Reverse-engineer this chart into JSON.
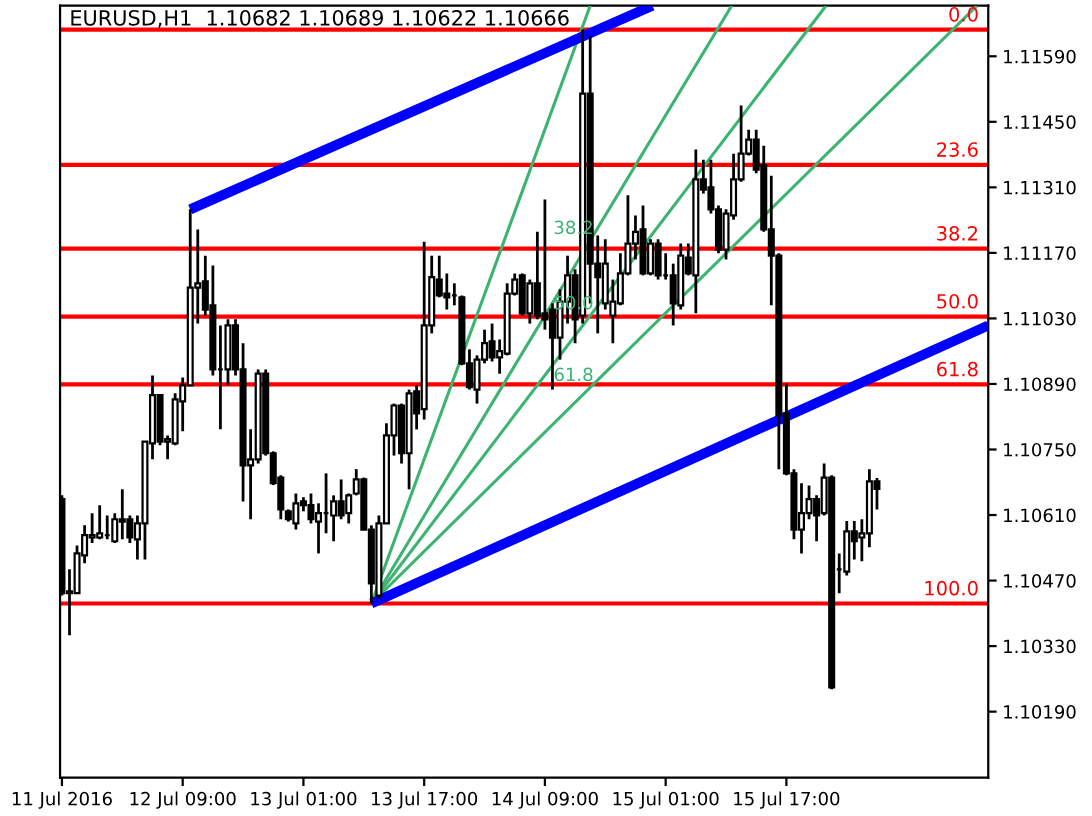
{
  "chart_data": {
    "type": "candlestick",
    "title": "EURUSD,H1  1.10682 1.10689 1.10622 1.10666",
    "x": [
      "2016-07-11T17:00",
      "2016-07-11T18:00",
      "2016-07-11T19:00",
      "2016-07-11T20:00",
      "2016-07-11T21:00",
      "2016-07-11T22:00",
      "2016-07-11T23:00",
      "2016-07-12T00:00",
      "2016-07-12T01:00",
      "2016-07-12T02:00",
      "2016-07-12T03:00",
      "2016-07-12T04:00",
      "2016-07-12T05:00",
      "2016-07-12T06:00",
      "2016-07-12T07:00",
      "2016-07-12T08:00",
      "2016-07-12T09:00",
      "2016-07-12T10:00",
      "2016-07-12T11:00",
      "2016-07-12T12:00",
      "2016-07-12T13:00",
      "2016-07-12T14:00",
      "2016-07-12T15:00",
      "2016-07-12T16:00",
      "2016-07-12T17:00",
      "2016-07-12T18:00",
      "2016-07-12T19:00",
      "2016-07-12T20:00",
      "2016-07-12T21:00",
      "2016-07-12T22:00",
      "2016-07-12T23:00",
      "2016-07-13T00:00",
      "2016-07-13T01:00",
      "2016-07-13T02:00",
      "2016-07-13T03:00",
      "2016-07-13T04:00",
      "2016-07-13T05:00",
      "2016-07-13T06:00",
      "2016-07-13T07:00",
      "2016-07-13T08:00",
      "2016-07-13T09:00",
      "2016-07-13T10:00",
      "2016-07-13T11:00",
      "2016-07-13T12:00",
      "2016-07-13T13:00",
      "2016-07-13T14:00",
      "2016-07-13T15:00",
      "2016-07-13T16:00",
      "2016-07-13T17:00",
      "2016-07-13T18:00",
      "2016-07-13T19:00",
      "2016-07-13T20:00",
      "2016-07-13T21:00",
      "2016-07-13T22:00",
      "2016-07-13T23:00",
      "2016-07-14T00:00",
      "2016-07-14T01:00",
      "2016-07-14T02:00",
      "2016-07-14T03:00",
      "2016-07-14T04:00",
      "2016-07-14T05:00",
      "2016-07-14T06:00",
      "2016-07-14T07:00",
      "2016-07-14T08:00",
      "2016-07-14T09:00",
      "2016-07-14T10:00",
      "2016-07-14T11:00",
      "2016-07-14T12:00",
      "2016-07-14T13:00",
      "2016-07-14T14:00",
      "2016-07-14T15:00",
      "2016-07-14T16:00",
      "2016-07-14T17:00",
      "2016-07-14T18:00",
      "2016-07-14T19:00",
      "2016-07-14T20:00",
      "2016-07-14T21:00",
      "2016-07-14T22:00",
      "2016-07-14T23:00",
      "2016-07-15T00:00",
      "2016-07-15T01:00",
      "2016-07-15T02:00",
      "2016-07-15T03:00",
      "2016-07-15T04:00",
      "2016-07-15T05:00",
      "2016-07-15T06:00",
      "2016-07-15T07:00",
      "2016-07-15T08:00",
      "2016-07-15T09:00",
      "2016-07-15T10:00",
      "2016-07-15T11:00",
      "2016-07-15T12:00",
      "2016-07-15T13:00",
      "2016-07-15T14:00",
      "2016-07-15T15:00",
      "2016-07-15T16:00",
      "2016-07-15T17:00",
      "2016-07-15T18:00",
      "2016-07-15T19:00",
      "2016-07-15T20:00",
      "2016-07-15T21:00",
      "2016-07-15T22:00",
      "2016-07-15T23:00",
      "2016-07-16T00:00",
      "2016-07-16T01:00",
      "2016-07-16T02:00",
      "2016-07-16T03:00",
      "2016-07-16T04:00",
      "2016-07-16T05:00"
    ],
    "ohlc": [
      [
        1.10644,
        1.10652,
        1.10438,
        1.10443
      ],
      [
        1.10443,
        1.10494,
        1.10353,
        1.10447
      ],
      [
        1.10443,
        1.10545,
        1.10443,
        1.10528
      ],
      [
        1.10524,
        1.10588,
        1.10507,
        1.10567
      ],
      [
        1.10562,
        1.10614,
        1.1055,
        1.10567
      ],
      [
        1.10562,
        1.10631,
        1.10558,
        1.10571
      ],
      [
        1.10567,
        1.10609,
        1.10558,
        1.10567
      ],
      [
        1.10554,
        1.10614,
        1.1055,
        1.10601
      ],
      [
        1.10601,
        1.10665,
        1.10558,
        1.10596
      ],
      [
        1.10601,
        1.10609,
        1.1055,
        1.10562
      ],
      [
        1.10558,
        1.10609,
        1.10515,
        1.10592
      ],
      [
        1.10592,
        1.10767,
        1.10515,
        1.10767
      ],
      [
        1.10763,
        1.10908,
        1.10729,
        1.10866
      ],
      [
        1.10866,
        1.10866,
        1.10759,
        1.10767
      ],
      [
        1.10767,
        1.1078,
        1.10729,
        1.10772
      ],
      [
        1.10763,
        1.1087,
        1.10759,
        1.10857
      ],
      [
        1.10853,
        1.10904,
        1.10789,
        1.10887
      ],
      [
        1.10887,
        1.11263,
        1.10887,
        1.11096
      ],
      [
        1.11096,
        1.1122,
        1.11019,
        1.11105
      ],
      [
        1.11109,
        1.11164,
        1.11036,
        1.11049
      ],
      [
        1.11058,
        1.11143,
        1.10908,
        1.10921
      ],
      [
        1.10921,
        1.11015,
        1.10793,
        1.10921
      ],
      [
        1.10921,
        1.11028,
        1.10887,
        1.11015
      ],
      [
        1.11015,
        1.11028,
        1.10908,
        1.10921
      ],
      [
        1.10921,
        1.10977,
        1.10639,
        1.10716
      ],
      [
        1.10716,
        1.10793,
        1.10601,
        1.10729
      ],
      [
        1.10729,
        1.10921,
        1.1072,
        1.10912
      ],
      [
        1.10912,
        1.10921,
        1.10737,
        1.10742
      ],
      [
        1.10742,
        1.10746,
        1.10674,
        1.10678
      ],
      [
        1.1069,
        1.10695,
        1.10601,
        1.10622
      ],
      [
        1.10618,
        1.10622,
        1.10596,
        1.10601
      ],
      [
        1.10592,
        1.10656,
        1.10579,
        1.10635
      ],
      [
        1.10639,
        1.10648,
        1.10618,
        1.10631
      ],
      [
        1.10631,
        1.10656,
        1.10592,
        1.10601
      ],
      [
        1.10596,
        1.10635,
        1.10528,
        1.10614
      ],
      [
        1.10614,
        1.10699,
        1.10571,
        1.10614
      ],
      [
        1.10609,
        1.10652,
        1.10554,
        1.10639
      ],
      [
        1.10639,
        1.10686,
        1.10601,
        1.10609
      ],
      [
        1.10614,
        1.10656,
        1.10592,
        1.10652
      ],
      [
        1.10656,
        1.10708,
        1.10652,
        1.10686
      ],
      [
        1.10686,
        1.1069,
        1.10579,
        1.10579
      ],
      [
        1.10579,
        1.10588,
        1.10421,
        1.10464
      ],
      [
        1.10438,
        1.10609,
        1.1043,
        1.10592
      ],
      [
        1.10592,
        1.10806,
        1.10592,
        1.1078
      ],
      [
        1.1078,
        1.10848,
        1.10737,
        1.10844
      ],
      [
        1.10844,
        1.10848,
        1.1072,
        1.10742
      ],
      [
        1.10742,
        1.10878,
        1.10665,
        1.1087
      ],
      [
        1.10874,
        1.10887,
        1.10793,
        1.10827
      ],
      [
        1.10836,
        1.11194,
        1.10814,
        1.11015
      ],
      [
        1.11015,
        1.11164,
        1.10998,
        1.11118
      ],
      [
        1.11113,
        1.11164,
        1.11075,
        1.11079
      ],
      [
        1.11083,
        1.11126,
        1.11049,
        1.11075
      ],
      [
        1.11079,
        1.11105,
        1.11058,
        1.11079
      ],
      [
        1.11075,
        1.11079,
        1.1093,
        1.10934
      ],
      [
        1.10934,
        1.10964,
        1.10878,
        1.10883
      ],
      [
        1.10878,
        1.10951,
        1.10848,
        1.10942
      ],
      [
        1.10942,
        1.11006,
        1.10934,
        1.10977
      ],
      [
        1.10981,
        1.11019,
        1.10938,
        1.10947
      ],
      [
        1.10947,
        1.10985,
        1.10912,
        1.1096
      ],
      [
        1.10955,
        1.11105,
        1.10951,
        1.11083
      ],
      [
        1.11083,
        1.11126,
        1.11079,
        1.11113
      ],
      [
        1.11122,
        1.11126,
        1.11036,
        1.11041
      ],
      [
        1.11041,
        1.11113,
        1.11019,
        1.11105
      ],
      [
        1.11105,
        1.11215,
        1.11028,
        1.11036
      ],
      [
        1.11041,
        1.11284,
        1.11006,
        1.11028
      ],
      [
        1.11049,
        1.11062,
        1.10878,
        1.10989
      ],
      [
        1.10989,
        1.11092,
        1.10942,
        1.11066
      ],
      [
        1.11066,
        1.11164,
        1.11019,
        1.11122
      ],
      [
        1.11122,
        1.11135,
        1.10977,
        1.11028
      ],
      [
        1.11036,
        1.11647,
        1.11019,
        1.1151
      ],
      [
        1.1151,
        1.11634,
        1.11062,
        1.11147
      ],
      [
        1.11147,
        1.11207,
        1.10998,
        1.11118
      ],
      [
        1.11062,
        1.11199,
        1.11049,
        1.11147
      ],
      [
        1.11036,
        1.11113,
        1.10977,
        1.11066
      ],
      [
        1.11062,
        1.11169,
        1.11058,
        1.11126
      ],
      [
        1.11126,
        1.11293,
        1.11122,
        1.1119
      ],
      [
        1.1119,
        1.1125,
        1.11156,
        1.11215
      ],
      [
        1.1122,
        1.11271,
        1.11122,
        1.11126
      ],
      [
        1.11126,
        1.11199,
        1.11122,
        1.1119
      ],
      [
        1.1119,
        1.11199,
        1.11113,
        1.11122
      ],
      [
        1.11122,
        1.11169,
        1.11113,
        1.11122
      ],
      [
        1.11122,
        1.11147,
        1.11015,
        1.11062
      ],
      [
        1.11058,
        1.1119,
        1.11049,
        1.11164
      ],
      [
        1.1116,
        1.1119,
        1.11122,
        1.11126
      ],
      [
        1.11122,
        1.11391,
        1.11041,
        1.11327
      ],
      [
        1.11327,
        1.11369,
        1.11297,
        1.11305
      ],
      [
        1.1131,
        1.11369,
        1.11254,
        1.11263
      ],
      [
        1.11263,
        1.11271,
        1.11169,
        1.11177
      ],
      [
        1.11177,
        1.11263,
        1.11156,
        1.11254
      ],
      [
        1.1125,
        1.11382,
        1.11241,
        1.11327
      ],
      [
        1.11327,
        1.11485,
        1.11322,
        1.11382
      ],
      [
        1.11382,
        1.11433,
        1.11378,
        1.11412
      ],
      [
        1.11412,
        1.11433,
        1.1134,
        1.11348
      ],
      [
        1.11357,
        1.11399,
        1.11215,
        1.1122
      ],
      [
        1.1122,
        1.11335,
        1.11058,
        1.11164
      ],
      [
        1.11164,
        1.11169,
        1.10708,
        1.10823
      ],
      [
        1.10827,
        1.10891,
        1.10695,
        1.10699
      ],
      [
        1.10699,
        1.10708,
        1.10558,
        1.10579
      ],
      [
        1.10579,
        1.10678,
        1.10528,
        1.10614
      ],
      [
        1.10614,
        1.10673,
        1.10601,
        1.10644
      ],
      [
        1.10644,
        1.10652,
        1.10554,
        1.10609
      ],
      [
        1.10614,
        1.1072,
        1.10609,
        1.1069
      ],
      [
        1.1069,
        1.10695,
        1.10238,
        1.10242
      ],
      [
        1.10494,
        1.10528,
        1.10443,
        1.10494
      ],
      [
        1.10489,
        1.10597,
        1.10481,
        1.10575
      ],
      [
        1.10575,
        1.10597,
        1.10515,
        1.10554
      ],
      [
        1.10562,
        1.10601,
        1.10511,
        1.10571
      ],
      [
        1.10571,
        1.10708,
        1.10541,
        1.10682
      ],
      [
        1.10682,
        1.10689,
        1.10622,
        1.10666
      ]
    ],
    "series": [
      {
        "type": "line",
        "color": "#3cb371",
        "x": [
          "2016-07-13T10:00",
          "2016-07-14T15:00"
        ],
        "values": [
          1.10421,
          1.11698
        ]
      },
      {
        "type": "line",
        "name": "38.2",
        "color": "#3cb371",
        "x": [
          "2016-07-13T10:00",
          "2016-07-15T09:45"
        ],
        "values": [
          1.10421,
          1.11698
        ]
      },
      {
        "type": "line",
        "name": "50.0",
        "color": "#3cb371",
        "x": [
          "2016-07-13T10:00",
          "2016-07-15T22:15"
        ],
        "values": [
          1.10421,
          1.11698
        ]
      },
      {
        "type": "line",
        "name": "61.8",
        "color": "#3cb371",
        "x": [
          "2016-07-13T10:00",
          "2016-07-16T18:15"
        ],
        "values": [
          1.10421,
          1.11698
        ]
      },
      {
        "type": "line",
        "color": "#0000ff",
        "x": [
          "2016-07-12T10:00",
          "2016-07-14T23:15"
        ],
        "values": [
          1.11263,
          1.11698
        ]
      },
      {
        "type": "line",
        "color": "#0000ff",
        "x": [
          "2016-07-13T10:00",
          "2016-07-16T19:45"
        ],
        "values": [
          1.10421,
          1.11015
        ]
      }
    ],
    "ref_lines": [
      {
        "axis": "y",
        "value": 1.11647,
        "color": "#ff0000"
      },
      {
        "axis": "y",
        "value": 1.11358,
        "color": "#ff0000"
      },
      {
        "axis": "y",
        "value": 1.11179,
        "color": "#ff0000"
      },
      {
        "axis": "y",
        "value": 1.11034,
        "color": "#ff0000"
      },
      {
        "axis": "y",
        "value": 1.10889,
        "color": "#ff0000"
      },
      {
        "axis": "y",
        "value": 1.10421,
        "color": "#ff0000"
      }
    ],
    "annotations": [
      "0.0",
      "23.6",
      "38.2",
      "50.0",
      "61.8",
      "100.0"
    ],
    "xlim": [
      "2016-07-11T16:45",
      "2016-07-16T19:45"
    ],
    "xticks": [
      {
        "value": "2016-07-11T17:00",
        "label": "11 Jul 2016"
      },
      {
        "value": "2016-07-12T09:00",
        "label": "12 Jul 09:00"
      },
      {
        "value": "2016-07-13T01:00",
        "label": "13 Jul 01:00"
      },
      {
        "value": "2016-07-13T17:00",
        "label": "13 Jul 17:00"
      },
      {
        "value": "2016-07-14T09:00",
        "label": "14 Jul 09:00"
      },
      {
        "value": "2016-07-15T01:00",
        "label": "15 Jul 01:00"
      },
      {
        "value": "2016-07-15T17:00",
        "label": "15 Jul 17:00"
      }
    ],
    "ylim": [
      1.10049,
      1.11698
    ],
    "yticks": [
      {
        "value": 1.1019,
        "label": "1.10190"
      },
      {
        "value": 1.1033,
        "label": "1.10330"
      },
      {
        "value": 1.1047,
        "label": "1.10470"
      },
      {
        "value": 1.1061,
        "label": "1.10610"
      },
      {
        "value": 1.1075,
        "label": "1.10750"
      },
      {
        "value": 1.1089,
        "label": "1.10890"
      },
      {
        "value": 1.1103,
        "label": "1.11030"
      },
      {
        "value": 1.1117,
        "label": "1.11170"
      },
      {
        "value": 1.1131,
        "label": "1.11310"
      },
      {
        "value": 1.1145,
        "label": "1.11450"
      },
      {
        "value": 1.1159,
        "label": "1.11590"
      }
    ]
  }
}
